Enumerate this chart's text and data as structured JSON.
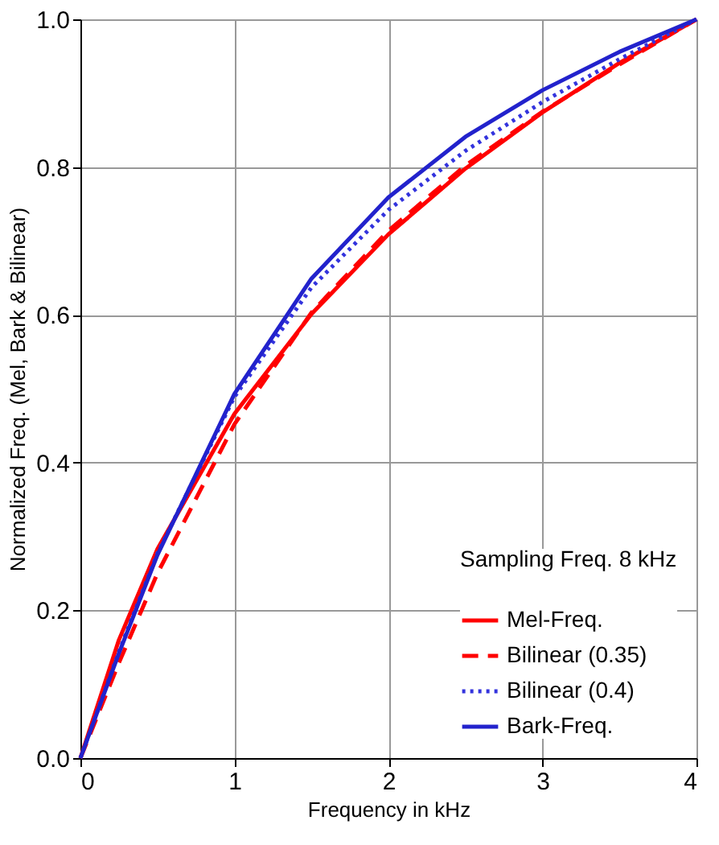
{
  "chart_data": {
    "type": "line",
    "xlabel": "Frequency in kHz",
    "ylabel": "Normalized Freq. (Mel, Bark & Bilinear)",
    "legend_title": "Sampling Freq. 8 kHz",
    "x": [
      0,
      0.25,
      0.5,
      1,
      1.5,
      2,
      2.5,
      3,
      3.5,
      4
    ],
    "series": [
      {
        "name": "Mel-Freq.",
        "color": "#ff0000",
        "line_style": "solid",
        "values": [
          0,
          0.16,
          0.283,
          0.466,
          0.601,
          0.709,
          0.798,
          0.874,
          0.941,
          1
        ]
      },
      {
        "name": "Bilinear (0.35)",
        "color": "#ff0000",
        "line_style": "dashed",
        "values": [
          0,
          0.129,
          0.25,
          0.452,
          0.603,
          0.714,
          0.802,
          0.875,
          0.939,
          1
        ]
      },
      {
        "name": "Bilinear (0.4)",
        "color": "#3333dd",
        "line_style": "dotted",
        "values": [
          0,
          0.144,
          0.277,
          0.489,
          0.637,
          0.742,
          0.822,
          0.888,
          0.946,
          1
        ]
      },
      {
        "name": "Bark-Freq.",
        "color": "#2222cc",
        "line_style": "solid",
        "values": [
          0,
          0.142,
          0.275,
          0.493,
          0.649,
          0.759,
          0.841,
          0.904,
          0.956,
          1
        ]
      }
    ],
    "xlim": [
      0,
      4
    ],
    "xticks": [
      0,
      1,
      2,
      3,
      4
    ],
    "ylim": [
      0,
      1
    ],
    "yticks": [
      {
        "value": 0,
        "label": "0.0"
      },
      {
        "value": 0.2,
        "label": "0.2"
      },
      {
        "value": 0.4,
        "label": "0.4"
      },
      {
        "value": 0.6,
        "label": "0.6"
      },
      {
        "value": 0.8,
        "label": "0.8"
      },
      {
        "value": 1,
        "label": "1.0"
      }
    ],
    "grid": true,
    "legend": "bottom right",
    "marker": "none"
  }
}
